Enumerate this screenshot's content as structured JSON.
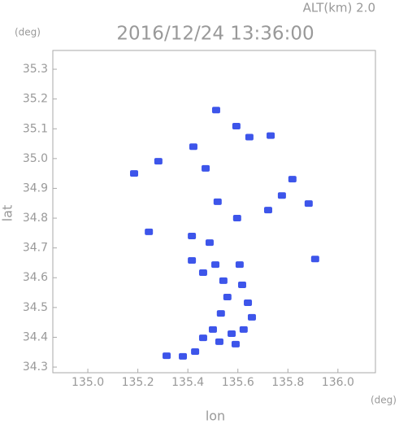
{
  "chart_data": {
    "type": "scatter",
    "title": "2016/12/24 13:36:00",
    "subtitle": "ALT(km) 2.0",
    "y_unit": "(deg)",
    "x_unit": "(deg)",
    "x_label": "lon",
    "y_label": "lat",
    "color": "#3d55ea",
    "xlim": [
      134.86,
      136.15
    ],
    "ylim": [
      34.281,
      35.363
    ],
    "xticks": [
      {
        "value": 135,
        "label": "135.0"
      },
      135.2,
      135.4,
      135.6,
      135.8,
      {
        "value": 136,
        "label": "136.0"
      }
    ],
    "yticks": [
      34.3,
      34.4,
      34.5,
      34.6,
      34.7,
      34.8,
      34.9,
      {
        "value": 35,
        "label": "35.0"
      },
      35.1,
      35.2,
      35.3
    ],
    "x": [
      135.513,
      135.646,
      135.731,
      135.594,
      135.185,
      135.282,
      135.422,
      135.471,
      135.818,
      135.776,
      135.883,
      135.721,
      135.597,
      135.519,
      135.244,
      135.416,
      135.487,
      135.909,
      135.416,
      135.51,
      135.607,
      135.461,
      135.542,
      135.617,
      135.558,
      135.64,
      135.532,
      135.656,
      135.5,
      135.575,
      135.623,
      135.461,
      135.526,
      135.429,
      135.38,
      135.315,
      135.591
    ],
    "y": [
      35.163,
      35.072,
      35.077,
      35.109,
      34.95,
      34.991,
      35.04,
      34.967,
      34.931,
      34.876,
      34.849,
      34.827,
      34.8,
      34.855,
      34.754,
      34.74,
      34.718,
      34.663,
      34.658,
      34.644,
      34.644,
      34.617,
      34.59,
      34.576,
      34.535,
      34.516,
      34.48,
      34.467,
      34.426,
      34.412,
      34.426,
      34.398,
      34.385,
      34.352,
      34.336,
      34.338,
      34.377
    ]
  }
}
